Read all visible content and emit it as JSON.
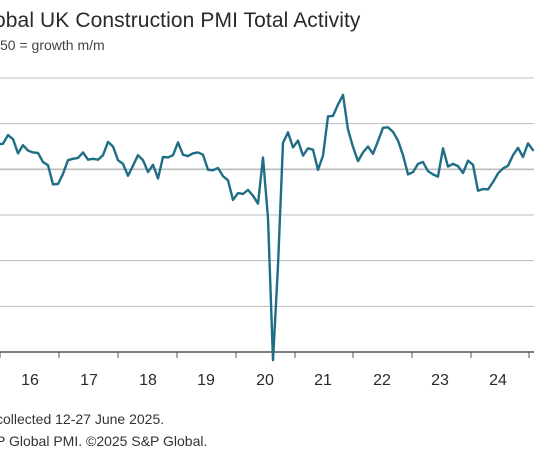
{
  "header": {
    "title": "obal UK Construction PMI Total Activity",
    "subtitle": "50 = growth m/m"
  },
  "footer": {
    "line1": "collected 12-27 June 2025.",
    "line2": "P Global PMI. ©2025 S&P Global."
  },
  "colors": {
    "line": "#1f6e86",
    "grid": "#bcbcbc",
    "axis": "#555555"
  },
  "chart_data": {
    "type": "line",
    "title": "obal UK Construction PMI Total Activity",
    "subtitle": "50 = growth m/m",
    "xlabel": "",
    "ylabel": "",
    "x_tick_labels": [
      "16",
      "17",
      "18",
      "19",
      "20",
      "21",
      "22",
      "23",
      "24"
    ],
    "ylim": [
      10,
      70
    ],
    "y_gridlines": [
      20,
      30,
      40,
      50,
      60,
      70
    ],
    "grid": true,
    "series": [
      {
        "values": [
          55.5,
          55.6,
          57.5,
          56.6,
          53.5,
          55.3,
          54.1,
          53.7,
          53.6,
          51.6,
          50.9,
          46.7,
          46.8,
          49.0,
          52.0,
          52.3,
          52.5,
          53.7,
          52.1,
          52.3,
          52.1,
          53.1,
          56.0,
          55.0,
          52.0,
          51.2,
          48.6,
          50.8,
          53.1,
          52.0,
          49.4,
          51.0,
          48.0,
          52.7,
          52.6,
          53.1,
          55.9,
          53.2,
          52.9,
          53.5,
          53.7,
          53.2,
          49.9,
          49.8,
          50.3,
          48.5,
          47.6,
          43.3,
          44.8,
          44.6,
          45.5,
          44.2,
          42.5,
          52.6,
          39.3,
          8.2,
          28.9,
          55.8,
          58.1,
          54.8,
          56.3,
          53.0,
          54.6,
          54.3,
          49.9,
          53.0,
          61.6,
          61.7,
          64.2,
          66.3,
          58.7,
          54.9,
          51.8,
          53.7,
          55.0,
          53.4,
          56.2,
          59.1,
          59.2,
          58.2,
          56.3,
          53.1,
          48.9,
          49.4,
          51.2,
          51.6,
          49.6,
          48.9,
          48.4,
          54.6,
          50.6,
          51.2,
          50.7,
          49.2,
          51.9,
          51.0,
          45.3,
          45.7,
          45.6,
          47.2,
          49.1,
          50.2,
          50.8,
          53.1,
          54.7,
          52.7,
          55.7,
          54.2
        ]
      }
    ]
  }
}
